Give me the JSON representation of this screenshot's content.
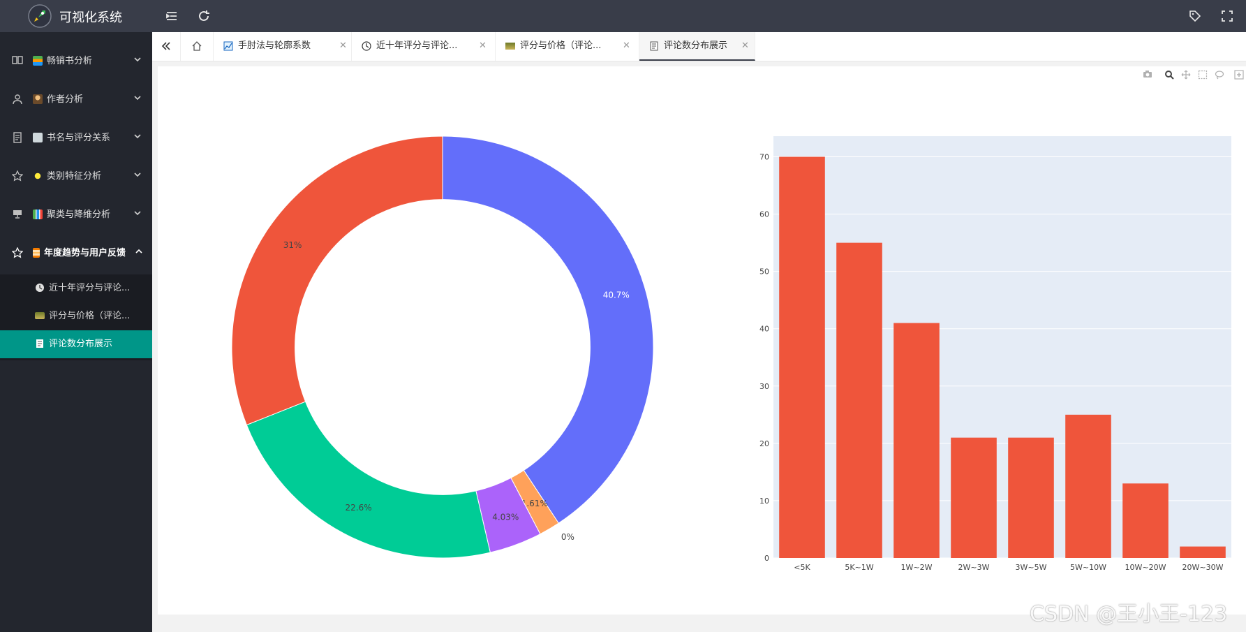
{
  "app": {
    "title": "可视化系统"
  },
  "header": {
    "menu_toggle_icon": "indent-icon",
    "refresh_icon": "refresh-icon",
    "tag_icon": "tag-icon",
    "fullscreen_icon": "fullscreen-icon"
  },
  "sidebar": {
    "items": [
      {
        "label": "畅销书分析",
        "icon": "book-icon"
      },
      {
        "label": "作者分析",
        "icon": "user-icon"
      },
      {
        "label": "书名与评分关系",
        "icon": "doc-icon"
      },
      {
        "label": "类别特征分析",
        "icon": "star-icon"
      },
      {
        "label": "聚类与降维分析",
        "icon": "screen-icon"
      },
      {
        "label": "年度趋势与用户反馈",
        "icon": "star-icon"
      }
    ],
    "sub_items": [
      {
        "label": "近十年评分与评论..."
      },
      {
        "label": "评分与价格（评论..."
      },
      {
        "label": "评论数分布展示"
      }
    ]
  },
  "tabs": [
    {
      "label": "手肘法与轮廓系数"
    },
    {
      "label": "近十年评分与评论..."
    },
    {
      "label": "评分与价格（评论..."
    },
    {
      "label": "评论数分布展示"
    }
  ],
  "colors": {
    "accent": "#009688",
    "header_bg": "#393d49",
    "sidebar_bg": "#23262e",
    "plot_bg": "#e5ecf6",
    "bar": "#ef553b"
  },
  "chart_data": [
    {
      "type": "pie",
      "hole": 0.7,
      "slices": [
        {
          "label": "40.7%",
          "value": 40.7,
          "color": "#636efa"
        },
        {
          "label": "0%",
          "value": 0,
          "color": "#ab63fa"
        },
        {
          "label": "1.61%",
          "value": 1.61,
          "color": "#ffa15a"
        },
        {
          "label": "4.03%",
          "value": 4.03,
          "color": "#ab63fa"
        },
        {
          "label": "22.6%",
          "value": 22.6,
          "color": "#00cc96"
        },
        {
          "label": "31%",
          "value": 31.0,
          "color": "#ef553b"
        }
      ]
    },
    {
      "type": "bar",
      "categories": [
        "<5K",
        "5K~1W",
        "1W~2W",
        "2W~3W",
        "3W~5W",
        "5W~10W",
        "10W~20W",
        "20W~30W"
      ],
      "values": [
        70,
        55,
        41,
        21,
        21,
        25,
        13,
        2
      ],
      "ylim": [
        0,
        73.6
      ],
      "yticks": [
        "0",
        "10",
        "20",
        "30",
        "40",
        "50",
        "60",
        "70"
      ],
      "grid": true,
      "color": "#ef553b"
    }
  ],
  "watermark": "CSDN @王小王-123"
}
